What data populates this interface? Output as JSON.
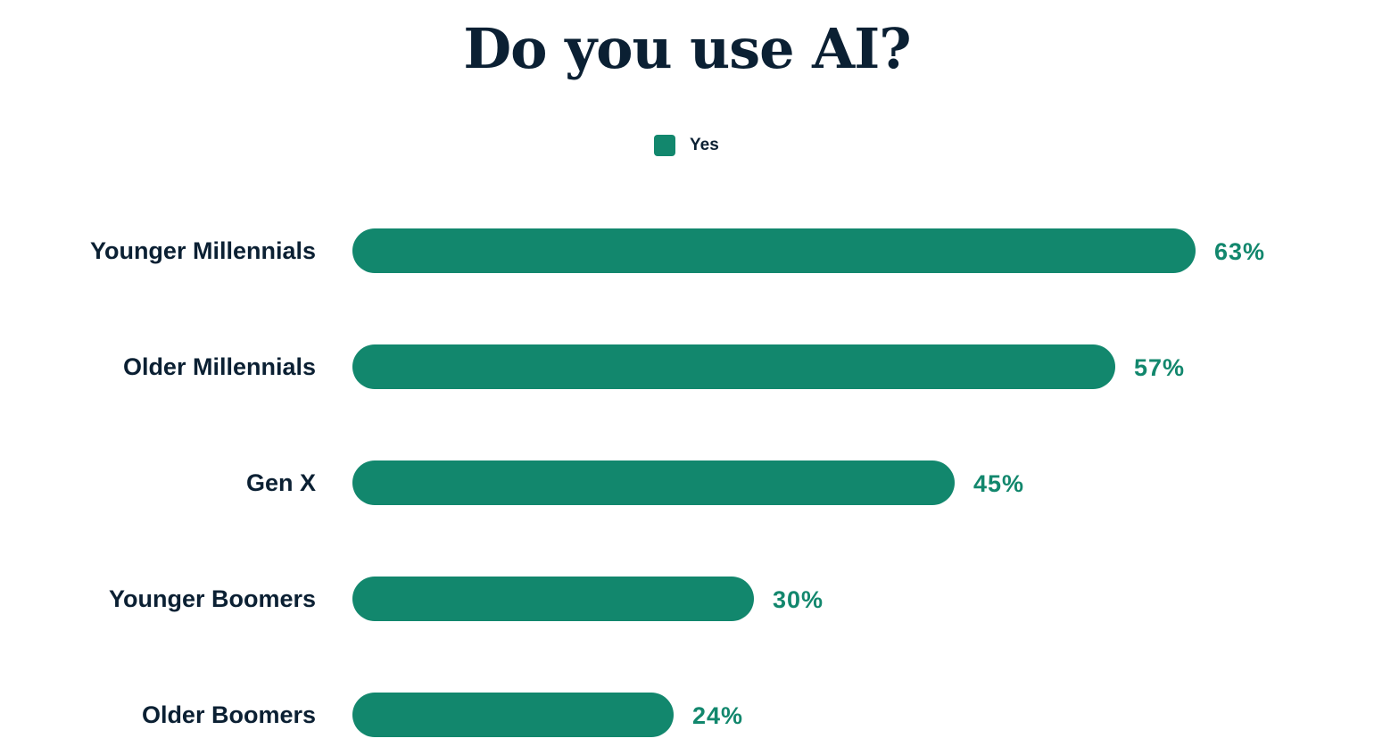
{
  "chart_data": {
    "type": "bar",
    "orientation": "horizontal",
    "title": "Do you use AI?",
    "categories": [
      "Younger Millennials",
      "Older Millennials",
      "Gen X",
      "Younger Boomers",
      "Older Boomers"
    ],
    "series": [
      {
        "name": "Yes",
        "values": [
          63,
          57,
          45,
          30,
          24
        ],
        "color": "#12876d"
      }
    ],
    "data_labels": [
      "63%",
      "57%",
      "45%",
      "30%",
      "24%"
    ],
    "unit": "%",
    "legend": "top-center",
    "grid": false,
    "xlim": [
      0,
      63
    ]
  },
  "colors": {
    "text": "#0b2033",
    "bar": "#12876d"
  }
}
